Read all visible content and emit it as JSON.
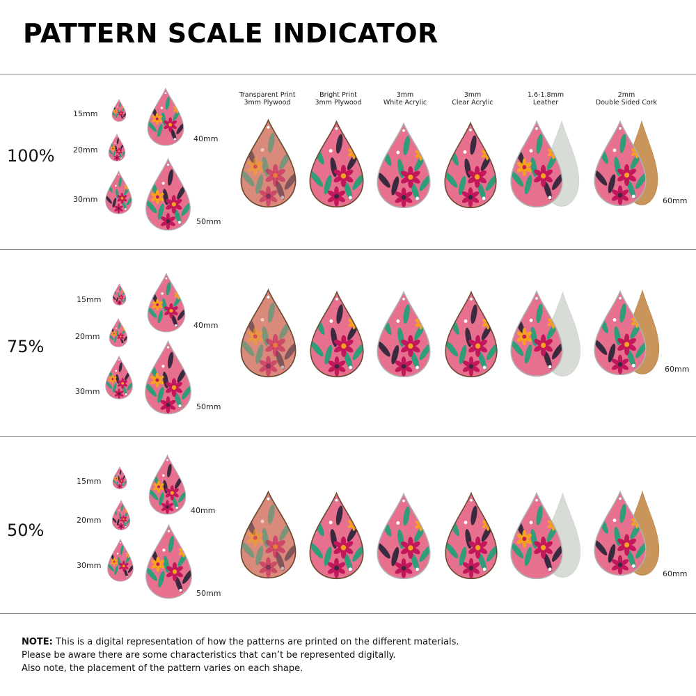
{
  "title": "PATTERN SCALE INDICATOR",
  "materials": [
    {
      "line1": "Transparent Print",
      "line2": "3mm Plywood"
    },
    {
      "line1": "Bright Print",
      "line2": "3mm Plywood"
    },
    {
      "line1": "3mm",
      "line2": "White Acrylic"
    },
    {
      "line1": "3mm",
      "line2": "Clear Acrylic"
    },
    {
      "line1": "1.6-1.8mm",
      "line2": "Leather"
    },
    {
      "line1": "2mm",
      "line2": "Double Sided Cork"
    }
  ],
  "sections": [
    {
      "scale": "100%",
      "sizes": {
        "s15": "15mm",
        "s20": "20mm",
        "s30": "30mm",
        "s40": "40mm",
        "s50": "50mm",
        "s60": "60mm"
      }
    },
    {
      "scale": "75%",
      "sizes": {
        "s15": "15mm",
        "s20": "20mm",
        "s30": "30mm",
        "s40": "40mm",
        "s50": "50mm",
        "s60": "60mm"
      }
    },
    {
      "scale": "50%",
      "sizes": {
        "s15": "15mm",
        "s20": "20mm",
        "s30": "30mm",
        "s40": "40mm",
        "s50": "50mm",
        "s60": "60mm"
      }
    }
  ],
  "note": {
    "label": "NOTE:",
    "line1": " This is a digital representation of how the patterns are printed on the different materials.",
    "line2": "Please be aware there are some characteristics that can’t be represented digitally.",
    "line3": "Also note, the placement of the pattern varies on each shape."
  },
  "colors": {
    "pink": "#e8708f",
    "muted_pink": "#d98a7a",
    "magenta": "#c2185b",
    "green": "#2f9c7a",
    "orange": "#f6a21c",
    "dark": "#3a2a3f",
    "leather": "#d8dcd6",
    "cork": "#c9955a",
    "wood_edge": "#6b4a32"
  }
}
